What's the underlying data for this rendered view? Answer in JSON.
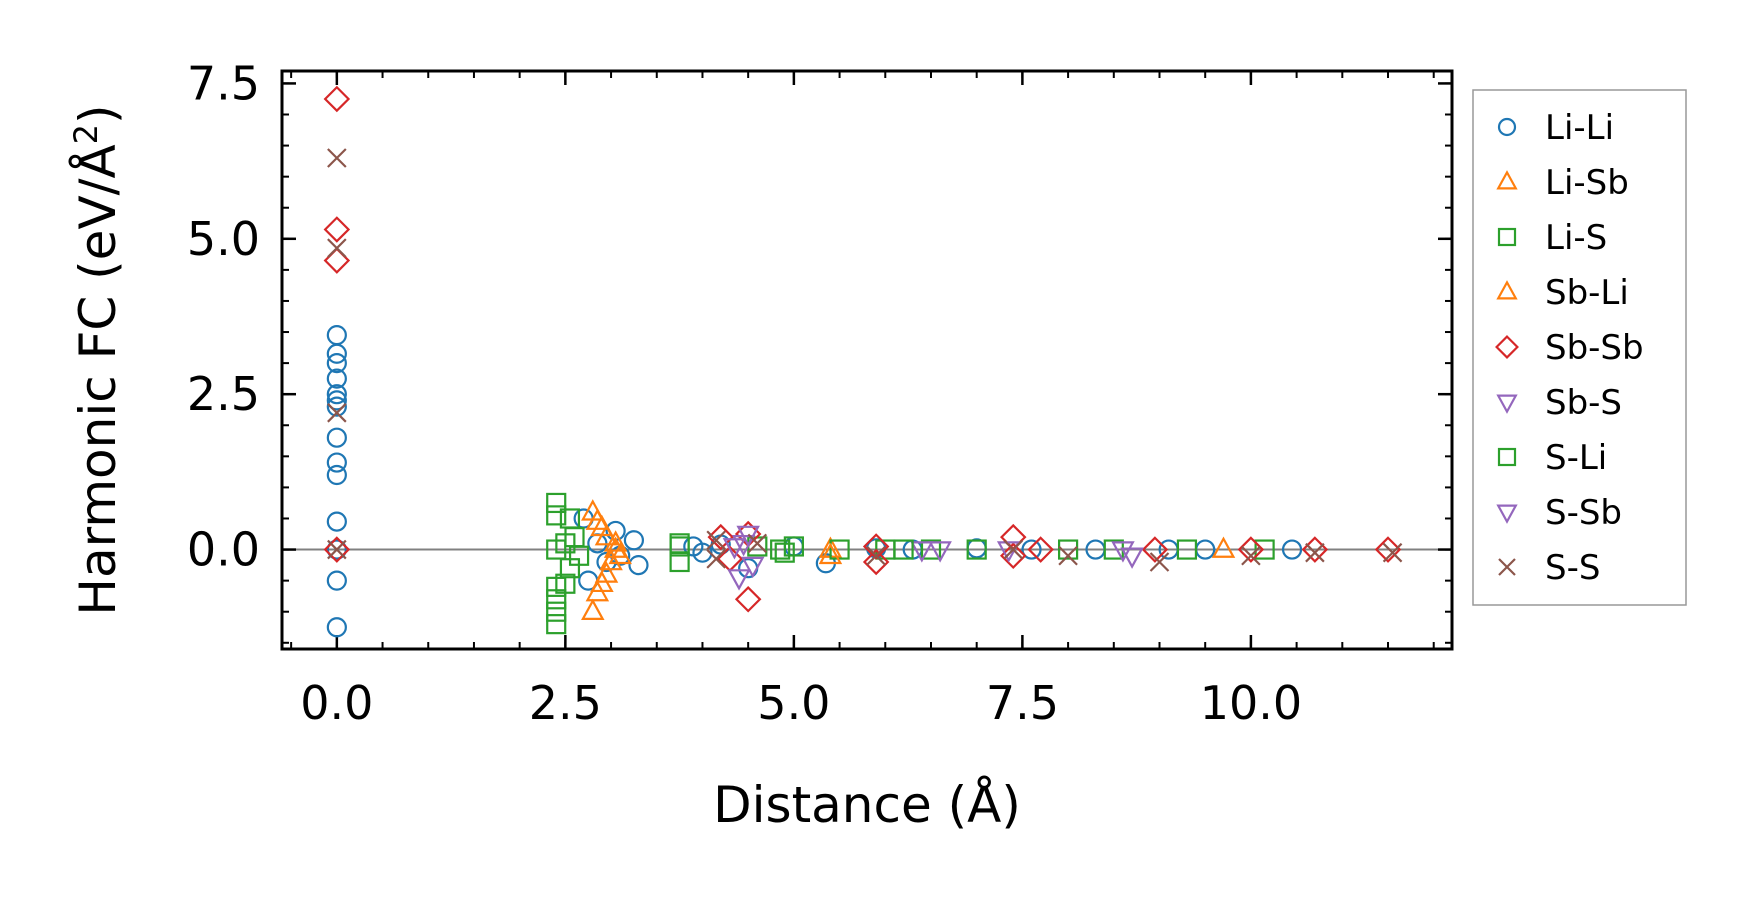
{
  "chart_data": {
    "type": "scatter",
    "title": "",
    "xlabel": "Distance (Å)",
    "ylabel_main": "Harmonic FC (eV/Å",
    "ylabel_sup": "2",
    "ylabel_close": ")",
    "xlim": [
      -0.6,
      12.2
    ],
    "ylim": [
      -1.6,
      7.7
    ],
    "xticks": [
      0.0,
      2.5,
      5.0,
      7.5,
      10.0
    ],
    "xtick_labels": [
      "0.0",
      "2.5",
      "5.0",
      "7.5",
      "10.0"
    ],
    "yticks": [
      0.0,
      2.5,
      5.0,
      7.5
    ],
    "ytick_labels": [
      "0.0",
      "2.5",
      "5.0",
      "7.5"
    ],
    "zero_line": true,
    "legend_position": "outside-right",
    "series": [
      {
        "name": "Li-Li",
        "marker": "circle",
        "color": "#1f77b4",
        "points": [
          [
            0,
            3.45
          ],
          [
            0,
            3.15
          ],
          [
            0,
            3.0
          ],
          [
            0,
            2.75
          ],
          [
            0,
            2.5
          ],
          [
            0,
            2.4
          ],
          [
            0,
            2.3
          ],
          [
            0,
            1.8
          ],
          [
            0,
            1.4
          ],
          [
            0,
            1.2
          ],
          [
            0,
            0.45
          ],
          [
            0,
            0.0
          ],
          [
            0,
            -0.5
          ],
          [
            0,
            -1.25
          ],
          [
            2.7,
            0.5
          ],
          [
            2.75,
            -0.5
          ],
          [
            2.85,
            0.1
          ],
          [
            2.95,
            -0.2
          ],
          [
            3.05,
            0.3
          ],
          [
            3.1,
            -0.1
          ],
          [
            3.25,
            0.15
          ],
          [
            3.3,
            -0.25
          ],
          [
            3.9,
            0.05
          ],
          [
            4.0,
            -0.05
          ],
          [
            4.2,
            0.08
          ],
          [
            4.5,
            -0.3
          ],
          [
            5.0,
            0.05
          ],
          [
            5.35,
            -0.22
          ],
          [
            5.9,
            0.02
          ],
          [
            6.3,
            0.0
          ],
          [
            7.0,
            0.02
          ],
          [
            7.6,
            0.0
          ],
          [
            8.3,
            0.0
          ],
          [
            9.1,
            0.0
          ],
          [
            9.5,
            0.0
          ],
          [
            10.45,
            0.0
          ]
        ]
      },
      {
        "name": "Li-Sb",
        "marker": "triangle-up",
        "color": "#ff7f0e",
        "points": [
          [
            2.8,
            0.6
          ],
          [
            2.8,
            -1.0
          ],
          [
            2.85,
            -0.7
          ],
          [
            2.9,
            0.35
          ],
          [
            2.9,
            -0.55
          ],
          [
            2.95,
            0.2
          ],
          [
            3.0,
            -0.2
          ],
          [
            3.05,
            0.1
          ],
          [
            3.1,
            -0.1
          ],
          [
            5.4,
            0.0
          ],
          [
            9.7,
            0.0
          ]
        ]
      },
      {
        "name": "Li-S",
        "marker": "square",
        "color": "#2ca02c",
        "points": [
          [
            2.4,
            0.75
          ],
          [
            2.4,
            0.55
          ],
          [
            2.4,
            0.0
          ],
          [
            2.4,
            -0.6
          ],
          [
            2.4,
            -0.8
          ],
          [
            2.4,
            -1.0
          ],
          [
            2.4,
            -1.2
          ],
          [
            2.5,
            0.1
          ],
          [
            2.55,
            -0.3
          ],
          [
            2.6,
            0.2
          ],
          [
            2.65,
            -0.1
          ],
          [
            3.75,
            0.1
          ],
          [
            3.75,
            -0.2
          ],
          [
            4.6,
            0.05
          ],
          [
            4.9,
            -0.05
          ],
          [
            5.0,
            0.05
          ],
          [
            5.5,
            0.0
          ],
          [
            6.0,
            0.0
          ],
          [
            6.5,
            0.0
          ],
          [
            7.0,
            0.0
          ],
          [
            8.0,
            0.0
          ],
          [
            8.5,
            0.0
          ],
          [
            9.3,
            0.0
          ],
          [
            10.15,
            0.0
          ]
        ]
      },
      {
        "name": "Sb-Li",
        "marker": "triangle-up",
        "color": "#ff7f0e",
        "points": [
          [
            2.85,
            0.45
          ],
          [
            2.95,
            -0.4
          ],
          [
            3.05,
            0.0
          ],
          [
            5.4,
            -0.1
          ]
        ]
      },
      {
        "name": "Sb-Sb",
        "marker": "diamond",
        "color": "#d62728",
        "points": [
          [
            0,
            7.25
          ],
          [
            0,
            5.15
          ],
          [
            0,
            4.65
          ],
          [
            0,
            0.0
          ],
          [
            4.2,
            0.2
          ],
          [
            4.3,
            -0.15
          ],
          [
            4.5,
            0.25
          ],
          [
            4.5,
            -0.8
          ],
          [
            5.9,
            0.05
          ],
          [
            5.9,
            -0.2
          ],
          [
            7.4,
            0.2
          ],
          [
            7.4,
            -0.1
          ],
          [
            7.7,
            0.0
          ],
          [
            8.95,
            0.0
          ],
          [
            10.0,
            0.0
          ],
          [
            10.7,
            0.0
          ],
          [
            11.5,
            0.0
          ]
        ]
      },
      {
        "name": "Sb-S",
        "marker": "triangle-down",
        "color": "#9467bd",
        "points": [
          [
            4.35,
            0.05
          ],
          [
            4.4,
            -0.45
          ],
          [
            4.5,
            0.25
          ],
          [
            4.55,
            -0.25
          ],
          [
            6.4,
            0.0
          ],
          [
            7.35,
            0.0
          ],
          [
            8.7,
            -0.1
          ]
        ]
      },
      {
        "name": "S-Li",
        "marker": "square",
        "color": "#2ca02c",
        "points": [
          [
            2.55,
            0.5
          ],
          [
            2.5,
            -0.55
          ],
          [
            3.75,
            0.05
          ],
          [
            4.85,
            0.0
          ],
          [
            6.2,
            0.0
          ]
        ]
      },
      {
        "name": "S-Sb",
        "marker": "triangle-down",
        "color": "#9467bd",
        "points": [
          [
            4.45,
            0.1
          ],
          [
            6.6,
            0.0
          ],
          [
            8.6,
            0.0
          ]
        ]
      },
      {
        "name": "S-S",
        "marker": "x",
        "color": "#8c564b",
        "points": [
          [
            0,
            6.3
          ],
          [
            0,
            4.85
          ],
          [
            0,
            2.2
          ],
          [
            0,
            0.0
          ],
          [
            4.15,
            0.15
          ],
          [
            4.15,
            -0.15
          ],
          [
            4.6,
            0.1
          ],
          [
            5.9,
            -0.1
          ],
          [
            7.4,
            0.0
          ],
          [
            8.0,
            -0.1
          ],
          [
            9.0,
            -0.2
          ],
          [
            10.0,
            -0.1
          ],
          [
            10.7,
            -0.05
          ],
          [
            11.55,
            -0.05
          ]
        ]
      }
    ]
  }
}
